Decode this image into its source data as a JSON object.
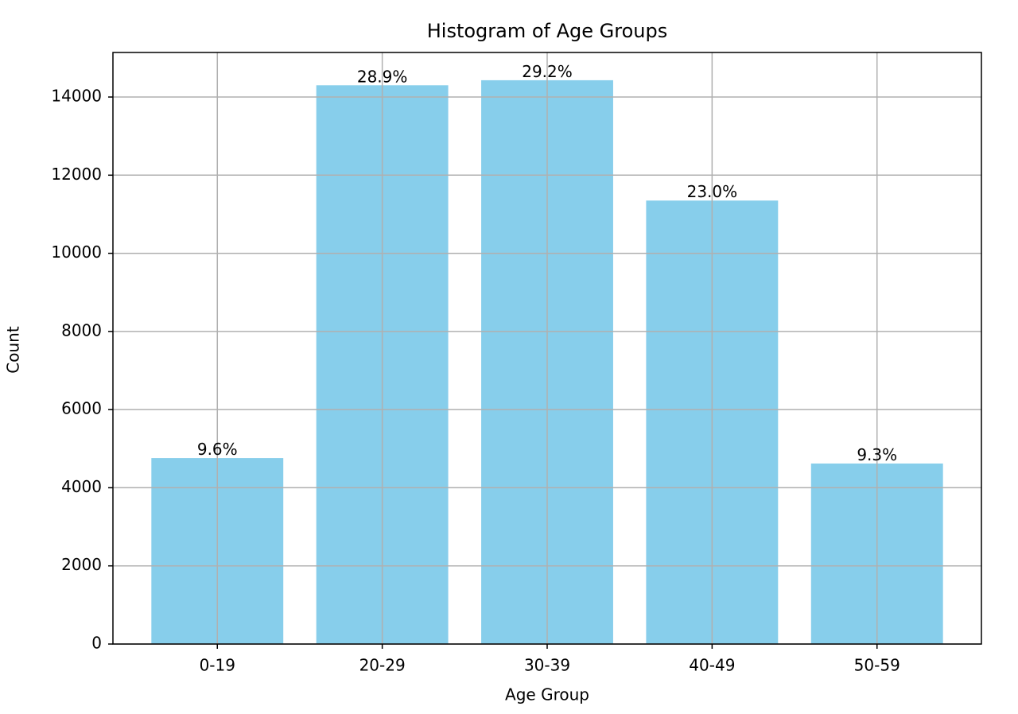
{
  "chart_data": {
    "type": "bar",
    "title": "Histogram of Age Groups",
    "x_label": "Age Group",
    "y_label": "Count",
    "categories": [
      "0-19",
      "20-29",
      "30-39",
      "40-49",
      "50-59"
    ],
    "values": [
      4760,
      14300,
      14430,
      11350,
      4620
    ],
    "annotations": [
      "9.6%",
      "28.9%",
      "29.2%",
      "23.0%",
      "9.3%"
    ],
    "color": "#87ceeb",
    "ylim": [
      0,
      15140
    ],
    "yticks": [
      0,
      2000,
      4000,
      6000,
      8000,
      10000,
      12000,
      14000
    ],
    "grid": true
  }
}
